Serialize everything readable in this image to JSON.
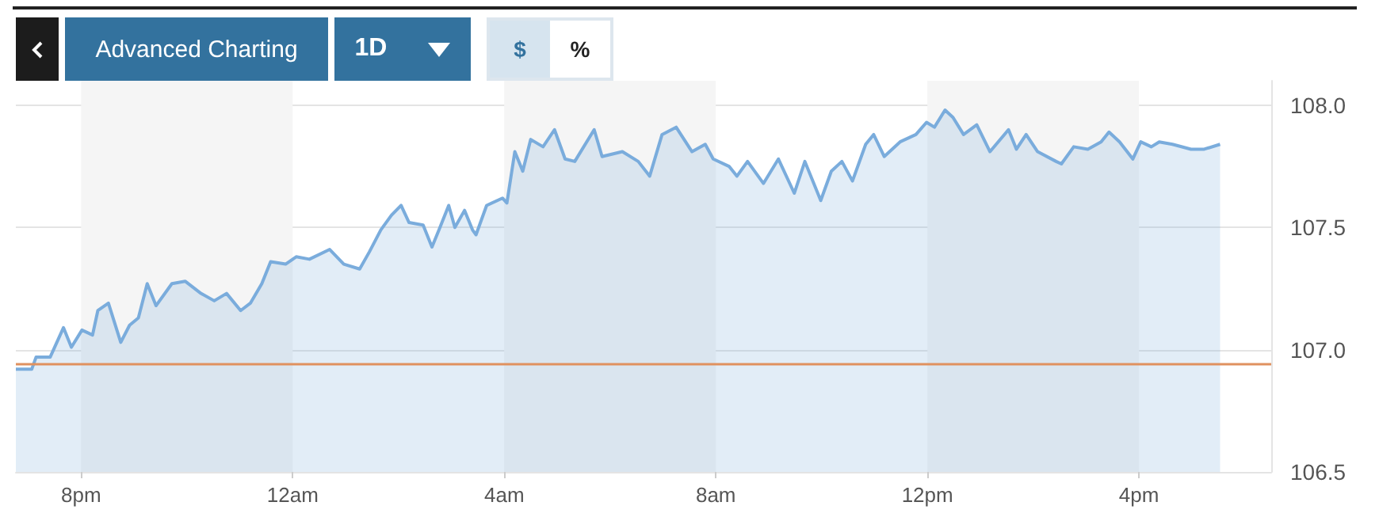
{
  "chart_data": {
    "type": "area",
    "annotations": [
      "Advanced Charting",
      "1D",
      "$",
      "%"
    ],
    "x": [
      "--01-01T18:46",
      "--01-01T19:04",
      "--01-01T19:09",
      "--01-01T19:25",
      "--01-01T19:40",
      "--01-01T19:49",
      "--01-01T20:01",
      "--01-01T20:13",
      "--01-01T20:19",
      "--01-01T20:31",
      "--01-01T20:45",
      "--01-01T20:55",
      "--01-01T21:05",
      "--01-01T21:15",
      "--01-01T21:25",
      "--01-01T21:43",
      "--01-01T21:58",
      "--01-01T22:16",
      "--01-01T22:31",
      "--01-01T22:45",
      "--01-01T23:01",
      "--01-01T23:12",
      "--01-01T23:25",
      "--01-01T23:35",
      "--01-01T23:52",
      "--01-02T00:04",
      "--01-02T00:19",
      "--01-02T00:42",
      "--01-02T00:58",
      "--01-02T01:16",
      "--01-02T01:27",
      "--01-02T01:40",
      "--01-02T01:52",
      "--01-02T02:03",
      "--01-02T02:12",
      "--01-02T02:28",
      "--01-02T02:38",
      "--01-02T02:46",
      "--01-02T02:57",
      "--01-02T03:04",
      "--01-02T03:15",
      "--01-02T03:24",
      "--01-02T03:28",
      "--01-02T03:40",
      "--01-02T03:58",
      "--01-02T04:03",
      "--01-02T04:12",
      "--01-02T04:21",
      "--01-02T04:30",
      "--01-02T04:44",
      "--01-02T04:57",
      "--01-02T05:09",
      "--01-02T05:20",
      "--01-02T05:42",
      "--01-02T05:51",
      "--01-02T06:14",
      "--01-02T06:32",
      "--01-02T06:45",
      "--01-02T06:59",
      "--01-02T07:15",
      "--01-02T07:33",
      "--01-02T07:48",
      "--01-02T07:57",
      "--01-02T08:15",
      "--01-02T08:24",
      "--01-02T08:36",
      "--01-02T08:54",
      "--01-02T09:11",
      "--01-02T09:29",
      "--01-02T09:41",
      "--01-02T09:59",
      "--01-02T10:11",
      "--01-02T10:23",
      "--01-02T10:35",
      "--01-02T10:50",
      "--01-02T10:59",
      "--01-02T11:11",
      "--01-02T11:29",
      "--01-02T11:47",
      "--01-02T11:59",
      "--01-02T12:08",
      "--01-02T12:20",
      "--01-02T12:29",
      "--01-02T12:41",
      "--01-02T12:56",
      "--01-02T13:11",
      "--01-02T13:32",
      "--01-02T13:41",
      "--01-02T13:52",
      "--01-02T14:05",
      "--01-02T14:26",
      "--01-02T14:32",
      "--01-02T14:46",
      "--01-02T15:02",
      "--01-02T15:17",
      "--01-02T15:26",
      "--01-02T15:38",
      "--01-02T15:53",
      "--01-02T16:02",
      "--01-02T16:14",
      "--01-02T16:23",
      "--01-02T16:38",
      "--01-02T16:59",
      "--01-02T17:14",
      "--01-02T17:32"
    ],
    "series": [
      {
        "color": "#7aacdc",
        "values": [
          106.92,
          106.92,
          106.97,
          106.97,
          107.09,
          107.01,
          107.08,
          107.06,
          107.16,
          107.19,
          107.03,
          107.1,
          107.13,
          107.27,
          107.18,
          107.27,
          107.28,
          107.23,
          107.2,
          107.23,
          107.16,
          107.19,
          107.27,
          107.36,
          107.35,
          107.38,
          107.37,
          107.41,
          107.35,
          107.33,
          107.4,
          107.49,
          107.55,
          107.59,
          107.52,
          107.51,
          107.42,
          107.49,
          107.59,
          107.5,
          107.57,
          107.49,
          107.47,
          107.59,
          107.62,
          107.6,
          107.81,
          107.73,
          107.86,
          107.83,
          107.9,
          107.78,
          107.77,
          107.9,
          107.79,
          107.81,
          107.77,
          107.71,
          107.88,
          107.91,
          107.81,
          107.84,
          107.78,
          107.75,
          107.71,
          107.77,
          107.68,
          107.78,
          107.64,
          107.77,
          107.61,
          107.73,
          107.77,
          107.69,
          107.84,
          107.88,
          107.79,
          107.85,
          107.88,
          107.93,
          107.91,
          107.98,
          107.95,
          107.88,
          107.92,
          107.81,
          107.9,
          107.82,
          107.88,
          107.81,
          107.77,
          107.76,
          107.83,
          107.82,
          107.85,
          107.89,
          107.85,
          107.78,
          107.85,
          107.83,
          107.85,
          107.84,
          107.82,
          107.82,
          107.84
        ]
      }
    ],
    "xlim": [
      "--01-01T18:46",
      "--01-02T18:30"
    ],
    "xticks": [
      {
        "value": "--01-01T20:00",
        "label": "8pm"
      },
      {
        "value": "--01-02T00:00",
        "label": "12am"
      },
      {
        "value": "--01-02T04:00",
        "label": "4am"
      },
      {
        "value": "--01-02T08:00",
        "label": "8am"
      },
      {
        "value": "--01-02T12:00",
        "label": "12pm"
      },
      {
        "value": "--01-02T16:00",
        "label": "4pm"
      }
    ],
    "ylim": [
      106.5,
      108.1
    ],
    "yticks": [
      {
        "value": 106.5,
        "label": "106.5"
      },
      {
        "value": 107,
        "label": "107.0"
      },
      {
        "value": 107.5,
        "label": "107.5"
      },
      {
        "value": 108,
        "label": "108.0"
      }
    ],
    "grid": "y",
    "marker": "none",
    "ref_lines": [
      {
        "axis": "y",
        "value": 106.94,
        "color": "#e0915f"
      }
    ],
    "bands": [
      {
        "axis": "x",
        "from": "--01-01T20:00",
        "to": "--01-02T00:00",
        "color": "#f5f5f5"
      },
      {
        "axis": "x",
        "from": "--01-02T04:00",
        "to": "--01-02T08:00",
        "color": "#f5f5f5"
      },
      {
        "axis": "x",
        "from": "--01-02T12:00",
        "to": "--01-02T16:00",
        "color": "#f5f5f5"
      }
    ]
  }
}
